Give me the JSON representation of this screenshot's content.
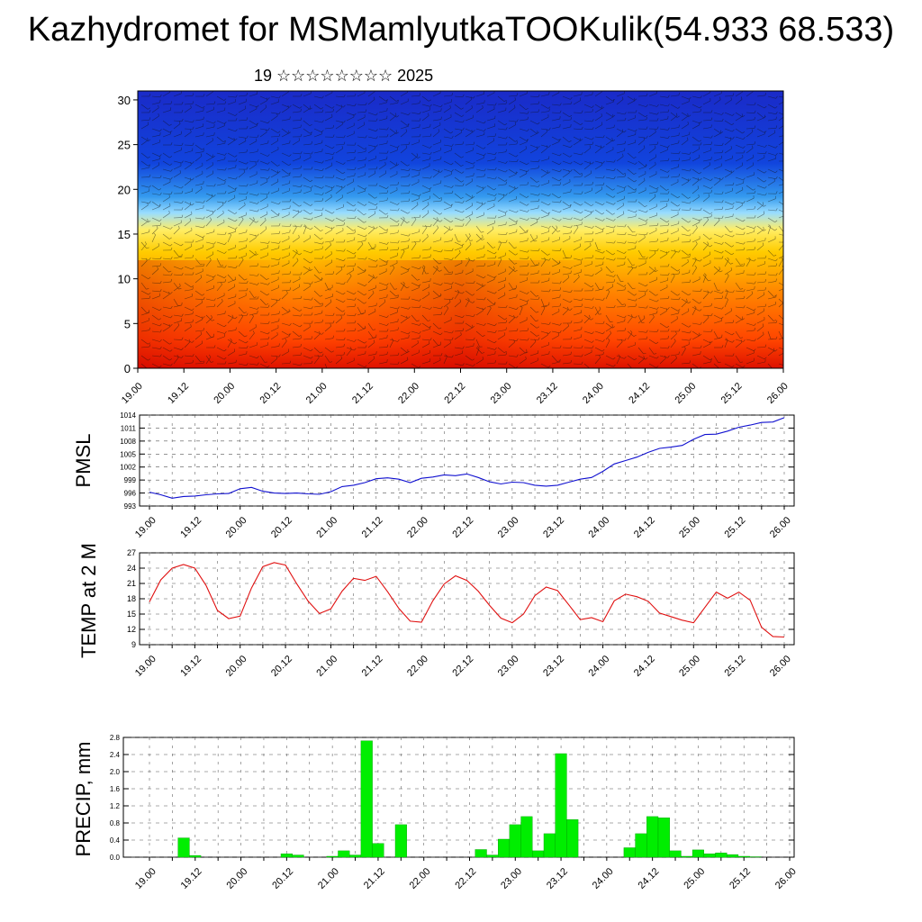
{
  "title": "Kazhydromet for MSMamlyutkaTOOKulik(54.933 68.533)",
  "subtitle": "19 ☆☆☆☆☆☆☆☆ 2025",
  "colors": {
    "pmsl_line": "#1010d0",
    "temp_line": "#e01010",
    "precip_bar": "#00ee00",
    "precip_bar_edge": "#009900",
    "profile_scale": [
      "#dd1100",
      "#ff4400",
      "#ff8800",
      "#ffcc00",
      "#ffee66",
      "#99ddff",
      "#3399ee",
      "#1144dd",
      "#1a2ac8"
    ]
  },
  "chart_data": [
    {
      "type": "heatmap",
      "name": "vertical-profile",
      "x_ticks": [
        "19.00",
        "19.12",
        "20.00",
        "20.12",
        "21.00",
        "21.12",
        "22.00",
        "22.12",
        "23.00",
        "23.12",
        "24.00",
        "24.12",
        "25.00",
        "25.12",
        "26.00"
      ],
      "y_ticks": [
        "0",
        "5",
        "10",
        "15",
        "20",
        "25",
        "30"
      ],
      "ylim": [
        0,
        31
      ],
      "colormap": "warm-to-cold with height",
      "overlay": "wind barbs"
    },
    {
      "type": "line",
      "name": "pmsl",
      "ylabel": "PMSL",
      "y_ticks": [
        "993",
        "996",
        "999",
        "1002",
        "1005",
        "1008",
        "1011",
        "1014"
      ],
      "ylim": [
        993,
        1014
      ],
      "x_ticks": [
        "19.00",
        "19.12",
        "20.00",
        "20.12",
        "21.00",
        "21.12",
        "22.00",
        "22.12",
        "23.00",
        "23.12",
        "24.00",
        "24.12",
        "25.00",
        "25.12",
        "26.00"
      ],
      "x": [
        0,
        3,
        6,
        9,
        12,
        15,
        18,
        21,
        24,
        27,
        30,
        33,
        36,
        39,
        42,
        45,
        48,
        51,
        54,
        57,
        60,
        63,
        66,
        69,
        72,
        75,
        78,
        81,
        84,
        87,
        90,
        93,
        96,
        99,
        102,
        105,
        108,
        111,
        114,
        117,
        120,
        123,
        126,
        129,
        132,
        135,
        138,
        141,
        144,
        147,
        150,
        153,
        156,
        159,
        162,
        165,
        168
      ],
      "values": [
        996.2,
        995.6,
        994.8,
        995.2,
        995.3,
        995.6,
        995.8,
        995.9,
        997.0,
        997.3,
        996.4,
        996.0,
        995.9,
        996.0,
        995.8,
        995.7,
        996.3,
        997.5,
        997.8,
        998.4,
        999.3,
        999.5,
        999.2,
        998.4,
        999.4,
        999.7,
        1000.2,
        1000.0,
        1000.4,
        999.6,
        998.6,
        998.1,
        998.5,
        998.4,
        997.8,
        997.6,
        997.8,
        998.5,
        999.2,
        999.6,
        1001.0,
        1002.7,
        1003.5,
        1004.3,
        1005.4,
        1006.3,
        1006.6,
        1007.0,
        1008.4,
        1009.5,
        1009.6,
        1010.3,
        1011.2,
        1011.7,
        1012.3,
        1012.4,
        1013.4
      ]
    },
    {
      "type": "line",
      "name": "temperature",
      "ylabel": "TEMP at 2 M",
      "y_ticks": [
        "9",
        "12",
        "15",
        "18",
        "21",
        "24",
        "27"
      ],
      "ylim": [
        9,
        27
      ],
      "x_ticks": [
        "19.00",
        "19.12",
        "20.00",
        "20.12",
        "21.00",
        "21.12",
        "22.00",
        "22.12",
        "23.00",
        "23.12",
        "24.00",
        "24.12",
        "25.00",
        "25.12",
        "26.00"
      ],
      "x": [
        0,
        3,
        6,
        9,
        12,
        15,
        18,
        21,
        24,
        27,
        30,
        33,
        36,
        39,
        42,
        45,
        48,
        51,
        54,
        57,
        60,
        63,
        66,
        69,
        72,
        75,
        78,
        81,
        84,
        87,
        90,
        93,
        96,
        99,
        102,
        105,
        108,
        111,
        114,
        117,
        120,
        123,
        126,
        129,
        132,
        135,
        138,
        141,
        144,
        147,
        150,
        153,
        156,
        159,
        162,
        165,
        168
      ],
      "values": [
        17.4,
        21.7,
        24.0,
        24.7,
        24.0,
        20.6,
        15.7,
        14.1,
        14.6,
        20.1,
        24.3,
        25.1,
        24.6,
        20.9,
        17.5,
        15.1,
        16.0,
        19.5,
        22.0,
        21.6,
        22.4,
        19.4,
        16.1,
        13.6,
        13.4,
        17.6,
        20.9,
        22.5,
        21.6,
        19.5,
        16.7,
        14.2,
        13.3,
        15.0,
        18.6,
        20.3,
        19.6,
        16.8,
        13.9,
        14.3,
        13.5,
        17.6,
        18.9,
        18.4,
        17.5,
        15.2,
        14.5,
        13.8,
        13.3,
        16.3,
        19.3,
        18.1,
        19.3,
        17.7,
        12.4,
        10.6,
        10.5
      ]
    },
    {
      "type": "bar",
      "name": "precipitation",
      "ylabel": "PRECIP, mm",
      "y_ticks": [
        "0.0",
        "0.4",
        "0.8",
        "1.2",
        "1.6",
        "2.0",
        "2.4",
        "2.8"
      ],
      "ylim": [
        0,
        2.8
      ],
      "x_ticks": [
        "19.00",
        "19.12",
        "20.00",
        "20.12",
        "21.00",
        "21.12",
        "22.00",
        "22.12",
        "23.00",
        "23.12",
        "24.00",
        "24.12",
        "25.00",
        "25.12",
        "26.00"
      ],
      "x": [
        9,
        12,
        36,
        39,
        48,
        51,
        54,
        57,
        60,
        66,
        87,
        90,
        93,
        96,
        99,
        102,
        105,
        108,
        111,
        126,
        129,
        132,
        135,
        138,
        141,
        144,
        147,
        150,
        153,
        156,
        159
      ],
      "values": [
        0.45,
        0.04,
        0.08,
        0.05,
        0.02,
        0.15,
        0.05,
        2.72,
        0.32,
        0.76,
        0.18,
        0.05,
        0.42,
        0.76,
        0.95,
        0.15,
        0.55,
        2.42,
        0.88,
        0.22,
        0.55,
        0.95,
        0.92,
        0.15,
        0.02,
        0.17,
        0.08,
        0.1,
        0.06,
        0.02,
        0.01
      ]
    }
  ]
}
